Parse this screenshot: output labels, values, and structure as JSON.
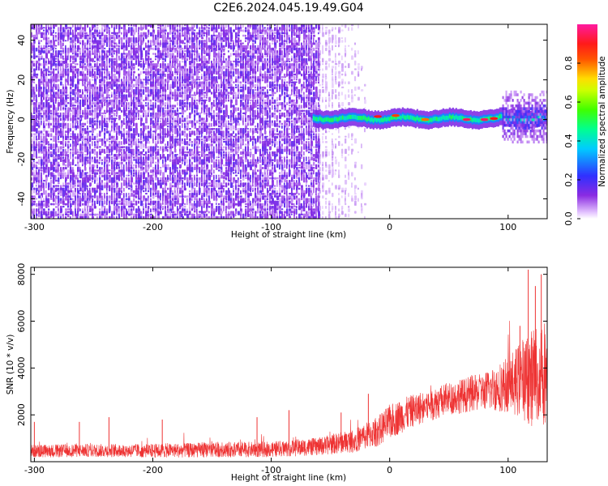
{
  "chart_data": [
    {
      "type": "heatmap",
      "title": "C2E6.2024.045.19.49.G04",
      "xlabel": "Height of straight line (km)",
      "ylabel": "Frequency (Hz)",
      "xlim": [
        -303,
        133
      ],
      "ylim": [
        -50,
        48
      ],
      "x_ticks": [
        -300,
        -200,
        -100,
        0,
        100
      ],
      "y_ticks": [
        -40,
        -20,
        0,
        20,
        40
      ],
      "colorbar": {
        "label": "Normalized spectral amplitude",
        "range": [
          0,
          1
        ],
        "ticks": [
          0.0,
          0.2,
          0.4,
          0.6,
          0.8
        ],
        "tick_labels": [
          "0.0",
          "0.2",
          "0.4",
          "0.6",
          "0.8"
        ],
        "colormap": "rainbow (white-violet-blue-cyan-green-yellow-red-magenta)"
      },
      "regions": [
        {
          "x_range": [
            -303,
            -60
          ],
          "frequency_range": [
            -50,
            48
          ],
          "amplitude_range": [
            0.0,
            0.08
          ],
          "description_code": "noise-dense"
        },
        {
          "x_range": [
            -60,
            -20
          ],
          "frequency_range": [
            -50,
            48
          ],
          "amplitude_range": [
            0.0,
            0.04
          ],
          "description_code": "noise-sparse"
        },
        {
          "x_range": [
            -65,
            133
          ],
          "frequency_center": 0.5,
          "frequency_halfwidth": 3,
          "amplitude_range": [
            0.35,
            0.95
          ],
          "description_code": "signal-band"
        },
        {
          "x_range": [
            95,
            133
          ],
          "frequency_range": [
            -12,
            14
          ],
          "amplitude_range": [
            0.05,
            0.3
          ],
          "description_code": "signal-spread"
        }
      ],
      "peak_points": [
        {
          "x": -10,
          "y": 1.5,
          "amplitude": 0.9
        },
        {
          "x": 5,
          "y": 2,
          "amplitude": 0.85
        },
        {
          "x": 30,
          "y": 0,
          "amplitude": 0.8
        },
        {
          "x": 65,
          "y": 0,
          "amplitude": 0.95
        },
        {
          "x": 80,
          "y": 0,
          "amplitude": 0.95
        },
        {
          "x": 88,
          "y": 0.5,
          "amplitude": 0.9
        }
      ]
    },
    {
      "type": "line",
      "title": "",
      "xlabel": "Height of straight line (km)",
      "ylabel": "SNR (10 * v/v)",
      "xlim": [
        -303,
        133
      ],
      "ylim": [
        0,
        8300
      ],
      "x_ticks": [
        -300,
        -200,
        -100,
        0,
        100
      ],
      "y_ticks": [
        2000,
        4000,
        6000,
        8000
      ],
      "color": "#ee3333",
      "envelope": {
        "x": [
          -303,
          -250,
          -200,
          -150,
          -100,
          -60,
          -30,
          -10,
          0,
          20,
          50,
          80,
          100,
          110,
          120,
          125,
          133
        ],
        "mean": [
          450,
          480,
          470,
          500,
          530,
          650,
          900,
          1300,
          1700,
          2200,
          2700,
          3000,
          3300,
          3500,
          3600,
          3700,
          3900
        ],
        "amp": [
          280,
          280,
          300,
          320,
          340,
          380,
          500,
          650,
          750,
          700,
          700,
          800,
          1200,
          1600,
          2100,
          2500,
          2200
        ]
      },
      "spikes": [
        {
          "x": -300,
          "y": 1700
        },
        {
          "x": -262,
          "y": 1700
        },
        {
          "x": -237,
          "y": 1900
        },
        {
          "x": -192,
          "y": 1800
        },
        {
          "x": -112,
          "y": 1900
        },
        {
          "x": -85,
          "y": 2200
        },
        {
          "x": -41,
          "y": 2100
        },
        {
          "x": -18,
          "y": 2900
        },
        {
          "x": 110,
          "y": 5800
        },
        {
          "x": 117,
          "y": 8200
        },
        {
          "x": 123,
          "y": 7500
        },
        {
          "x": 128,
          "y": 8000
        }
      ]
    }
  ]
}
